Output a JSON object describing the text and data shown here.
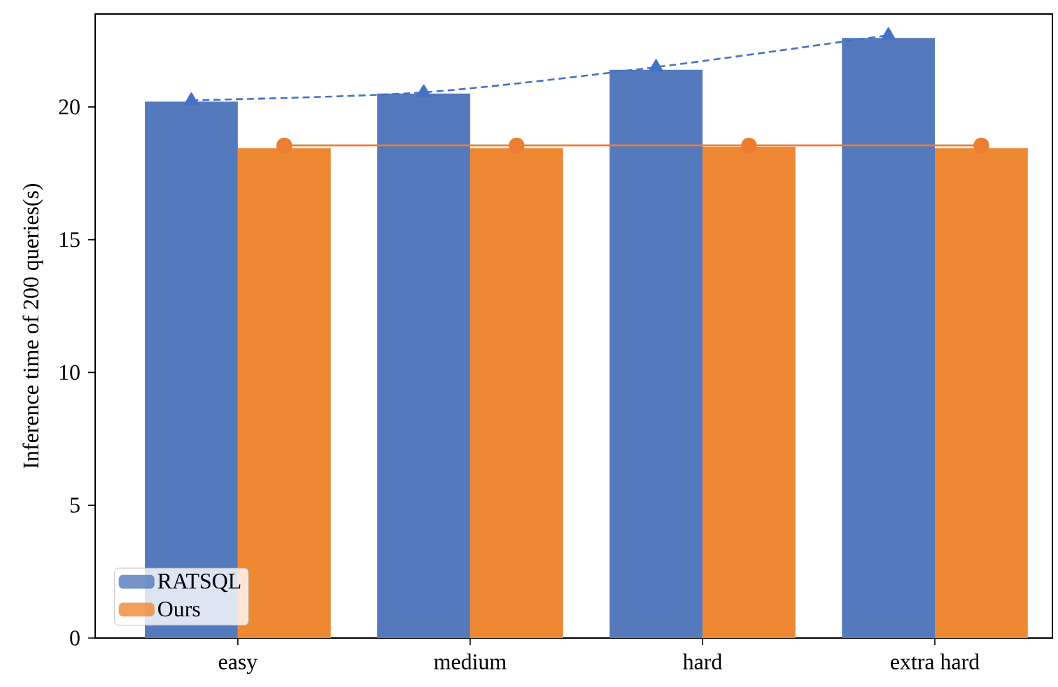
{
  "chart_data": {
    "type": "bar",
    "ylabel": "Inference time of 200 queries(s)",
    "categories": [
      "easy",
      "medium",
      "hard",
      "extra hard"
    ],
    "ylim": [
      0,
      23.5
    ],
    "yticks": [
      0,
      5,
      10,
      15,
      20
    ],
    "grid": false,
    "legend": "bottom left",
    "series": [
      {
        "name": "RATSQL",
        "color": "#5479bd",
        "values": [
          20.2,
          20.5,
          21.4,
          22.6
        ]
      },
      {
        "name": "Ours",
        "color": "#ef8833",
        "values": [
          18.45,
          18.45,
          18.5,
          18.45
        ]
      },
      {
        "type": "line",
        "color": "#4472c4",
        "marker": "triangle",
        "line_style": "dashed",
        "values": [
          20.25,
          20.55,
          21.5,
          22.7
        ]
      },
      {
        "type": "line",
        "color": "#ed7d31",
        "marker": "circle",
        "line_style": "solid",
        "values": [
          18.55,
          18.55,
          18.55,
          18.55
        ]
      }
    ]
  }
}
